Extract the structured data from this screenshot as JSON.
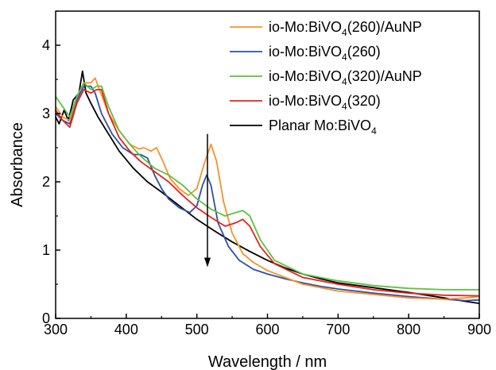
{
  "chart_data": {
    "type": "line",
    "xlabel": "Wavelength / nm",
    "ylabel": "Absorbance",
    "xlim": [
      300,
      900
    ],
    "ylim": [
      0,
      4.5
    ],
    "xticks": [
      300,
      400,
      500,
      600,
      700,
      800,
      900
    ],
    "yticks": [
      0,
      1,
      2,
      3,
      4
    ],
    "grid": false,
    "legend_position": "top-right",
    "series": [
      {
        "name": "io-Mo:BiVO4(260)/AuNP",
        "label_main": "io-Mo:BiVO",
        "label_sub": "4",
        "label_suffix": "(260)/AuNP",
        "color": "#f7922a",
        "points": [
          [
            300,
            3.1
          ],
          [
            310,
            2.95
          ],
          [
            320,
            2.9
          ],
          [
            330,
            3.25
          ],
          [
            340,
            3.45
          ],
          [
            350,
            3.45
          ],
          [
            356,
            3.52
          ],
          [
            362,
            3.35
          ],
          [
            375,
            3.0
          ],
          [
            390,
            2.75
          ],
          [
            405,
            2.55
          ],
          [
            418,
            2.48
          ],
          [
            425,
            2.5
          ],
          [
            435,
            2.45
          ],
          [
            443,
            2.5
          ],
          [
            452,
            2.3
          ],
          [
            462,
            2.05
          ],
          [
            475,
            1.9
          ],
          [
            488,
            1.8
          ],
          [
            500,
            1.9
          ],
          [
            510,
            2.25
          ],
          [
            520,
            2.55
          ],
          [
            528,
            2.3
          ],
          [
            538,
            1.7
          ],
          [
            550,
            1.25
          ],
          [
            565,
            0.95
          ],
          [
            580,
            0.82
          ],
          [
            600,
            0.7
          ],
          [
            625,
            0.6
          ],
          [
            650,
            0.5
          ],
          [
            675,
            0.45
          ],
          [
            700,
            0.4
          ],
          [
            750,
            0.35
          ],
          [
            800,
            0.3
          ],
          [
            850,
            0.28
          ],
          [
            880,
            0.3
          ],
          [
            900,
            0.32
          ]
        ]
      },
      {
        "name": "io-Mo:BiVO4(260)",
        "label_main": "io-Mo:BiVO",
        "label_sub": "4",
        "label_suffix": "(260)",
        "color": "#2e4fa8",
        "points": [
          [
            300,
            3.0
          ],
          [
            310,
            2.9
          ],
          [
            320,
            2.85
          ],
          [
            330,
            3.2
          ],
          [
            340,
            3.4
          ],
          [
            350,
            3.4
          ],
          [
            356,
            3.3
          ],
          [
            365,
            3.0
          ],
          [
            380,
            2.7
          ],
          [
            395,
            2.5
          ],
          [
            410,
            2.4
          ],
          [
            420,
            2.4
          ],
          [
            430,
            2.35
          ],
          [
            440,
            2.1
          ],
          [
            450,
            1.9
          ],
          [
            460,
            1.75
          ],
          [
            475,
            1.62
          ],
          [
            490,
            1.55
          ],
          [
            500,
            1.65
          ],
          [
            508,
            1.95
          ],
          [
            514,
            2.1
          ],
          [
            520,
            1.95
          ],
          [
            530,
            1.4
          ],
          [
            545,
            1.05
          ],
          [
            560,
            0.85
          ],
          [
            580,
            0.72
          ],
          [
            600,
            0.65
          ],
          [
            625,
            0.58
          ],
          [
            650,
            0.52
          ],
          [
            675,
            0.47
          ],
          [
            700,
            0.43
          ],
          [
            750,
            0.37
          ],
          [
            800,
            0.32
          ],
          [
            850,
            0.28
          ],
          [
            880,
            0.26
          ],
          [
            900,
            0.27
          ]
        ]
      },
      {
        "name": "io-Mo:BiVO4(320)/AuNP",
        "label_main": "io-Mo:BiVO",
        "label_sub": "4",
        "label_suffix": "(320)/AuNP",
        "color": "#5cc23c",
        "points": [
          [
            300,
            3.25
          ],
          [
            310,
            3.1
          ],
          [
            320,
            2.95
          ],
          [
            330,
            3.25
          ],
          [
            340,
            3.45
          ],
          [
            350,
            3.35
          ],
          [
            358,
            3.4
          ],
          [
            365,
            3.4
          ],
          [
            375,
            3.1
          ],
          [
            390,
            2.75
          ],
          [
            405,
            2.55
          ],
          [
            420,
            2.38
          ],
          [
            440,
            2.2
          ],
          [
            460,
            2.1
          ],
          [
            480,
            1.95
          ],
          [
            500,
            1.75
          ],
          [
            520,
            1.6
          ],
          [
            540,
            1.5
          ],
          [
            555,
            1.55
          ],
          [
            565,
            1.58
          ],
          [
            575,
            1.5
          ],
          [
            590,
            1.15
          ],
          [
            610,
            0.85
          ],
          [
            650,
            0.65
          ],
          [
            700,
            0.55
          ],
          [
            750,
            0.48
          ],
          [
            800,
            0.44
          ],
          [
            850,
            0.42
          ],
          [
            900,
            0.42
          ]
        ]
      },
      {
        "name": "io-Mo:BiVO4(320)",
        "label_main": "io-Mo:BiVO",
        "label_sub": "4",
        "label_suffix": "(320)",
        "color": "#e0261f",
        "points": [
          [
            300,
            3.05
          ],
          [
            310,
            2.9
          ],
          [
            320,
            2.8
          ],
          [
            330,
            3.15
          ],
          [
            340,
            3.35
          ],
          [
            350,
            3.3
          ],
          [
            358,
            3.35
          ],
          [
            365,
            3.35
          ],
          [
            375,
            3.0
          ],
          [
            390,
            2.65
          ],
          [
            405,
            2.45
          ],
          [
            420,
            2.3
          ],
          [
            440,
            2.15
          ],
          [
            460,
            2.0
          ],
          [
            480,
            1.8
          ],
          [
            500,
            1.62
          ],
          [
            520,
            1.48
          ],
          [
            540,
            1.35
          ],
          [
            555,
            1.4
          ],
          [
            565,
            1.45
          ],
          [
            575,
            1.35
          ],
          [
            590,
            1.05
          ],
          [
            610,
            0.8
          ],
          [
            650,
            0.6
          ],
          [
            700,
            0.5
          ],
          [
            750,
            0.42
          ],
          [
            800,
            0.37
          ],
          [
            850,
            0.34
          ],
          [
            900,
            0.33
          ]
        ]
      },
      {
        "name": "Planar Mo:BiVO4",
        "label_main": "Planar Mo:BiVO",
        "label_sub": "4",
        "label_suffix": "",
        "color": "#000000",
        "points": [
          [
            300,
            2.95
          ],
          [
            305,
            2.85
          ],
          [
            312,
            3.05
          ],
          [
            318,
            2.9
          ],
          [
            325,
            3.2
          ],
          [
            333,
            3.3
          ],
          [
            338,
            3.62
          ],
          [
            343,
            3.3
          ],
          [
            350,
            3.15
          ],
          [
            360,
            2.95
          ],
          [
            375,
            2.7
          ],
          [
            390,
            2.45
          ],
          [
            410,
            2.2
          ],
          [
            430,
            2.0
          ],
          [
            450,
            1.85
          ],
          [
            475,
            1.65
          ],
          [
            500,
            1.45
          ],
          [
            525,
            1.28
          ],
          [
            550,
            1.12
          ],
          [
            575,
            0.98
          ],
          [
            600,
            0.85
          ],
          [
            625,
            0.74
          ],
          [
            650,
            0.65
          ],
          [
            675,
            0.58
          ],
          [
            700,
            0.52
          ],
          [
            750,
            0.45
          ],
          [
            800,
            0.38
          ],
          [
            850,
            0.3
          ],
          [
            880,
            0.25
          ],
          [
            900,
            0.22
          ]
        ]
      }
    ],
    "annotations": [
      {
        "type": "arrow",
        "x": 515,
        "y_start": 2.7,
        "y_end": 0.75,
        "color": "#000000"
      }
    ]
  }
}
